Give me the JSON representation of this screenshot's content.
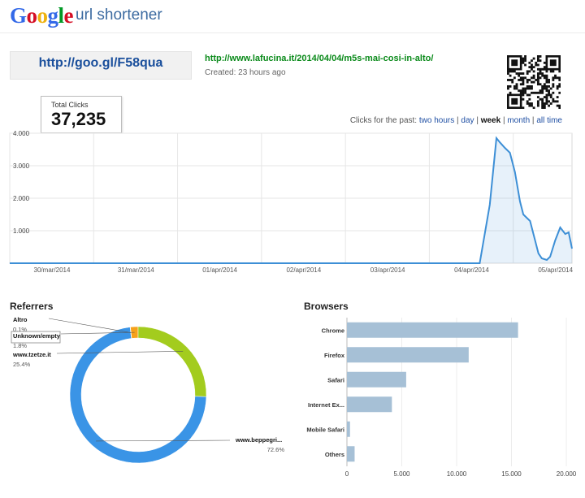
{
  "header": {
    "logo_letters": [
      {
        "ch": "G",
        "color": "#3369e8"
      },
      {
        "ch": "o",
        "color": "#d50f25"
      },
      {
        "ch": "o",
        "color": "#eeb211"
      },
      {
        "ch": "g",
        "color": "#3369e8"
      },
      {
        "ch": "l",
        "color": "#009925"
      },
      {
        "ch": "e",
        "color": "#d50f25"
      }
    ],
    "product": "url shortener"
  },
  "link": {
    "short_url": "http://goo.gl/F58qua",
    "long_url": "http://www.lafucina.it/2014/04/04/m5s-mai-cosi-in-alto/",
    "created": "Created: 23 hours ago",
    "qr_icon": "qr-code-icon"
  },
  "stats": {
    "total_clicks_label": "Total Clicks",
    "total_clicks": "37,235",
    "period_prefix": "Clicks for the past:",
    "periods": [
      "two hours",
      "day",
      "week",
      "month",
      "all time"
    ],
    "selected_period": "week",
    "separator": "|"
  },
  "sections": {
    "referrers": "Referrers",
    "browsers": "Browsers"
  },
  "chart_data": [
    {
      "type": "area",
      "x_labels": [
        "30/mar/2014",
        "31/mar/2014",
        "01/apr/2014",
        "02/apr/2014",
        "03/apr/2014",
        "04/apr/2014",
        "05/apr/2014"
      ],
      "y_ticks": [
        "1.000",
        "2.000",
        "3.000",
        "4.000"
      ],
      "ylim": [
        0,
        4000
      ],
      "grid": true,
      "series_color": "#3d8fd6",
      "series": [
        {
          "x": [
            0,
            5.6,
            5.72,
            5.8,
            5.84,
            5.9,
            5.96,
            6.02,
            6.08,
            6.12,
            6.16,
            6.2,
            6.26,
            6.3,
            6.34,
            6.4,
            6.44,
            6.5,
            6.56,
            6.62,
            6.66,
            6.7
          ],
          "y": [
            0,
            0,
            1800,
            3850,
            3720,
            3550,
            3400,
            2800,
            1900,
            1500,
            1400,
            1300,
            700,
            300,
            150,
            100,
            200,
            700,
            1100,
            900,
            950,
            450
          ]
        }
      ]
    },
    {
      "type": "pie",
      "donut": true,
      "slices": [
        {
          "label": "Altro",
          "value": 0.1,
          "percent": "0.1%",
          "color": "#e0452e"
        },
        {
          "label": "Unknown/empty",
          "value": 1.8,
          "percent": "1.8%",
          "color": "#f6a11a"
        },
        {
          "label": "www.tzetze.it",
          "value": 25.4,
          "percent": "25.4%",
          "color": "#a3cc1e"
        },
        {
          "label": "www.beppegri...",
          "value": 72.6,
          "percent": "72.6%",
          "color": "#3a94e6"
        }
      ]
    },
    {
      "type": "bar",
      "orientation": "horizontal",
      "categories": [
        "Chrome",
        "Firefox",
        "Safari",
        "Internet Ex...",
        "Mobile Safari",
        "Others"
      ],
      "values": [
        15600,
        11100,
        5400,
        4100,
        280,
        700
      ],
      "x_ticks": [
        "0",
        "5.000",
        "10.000",
        "15.000",
        "20.000"
      ],
      "xlim": [
        0,
        20000
      ],
      "bar_color": "#a6c0d6"
    }
  ]
}
